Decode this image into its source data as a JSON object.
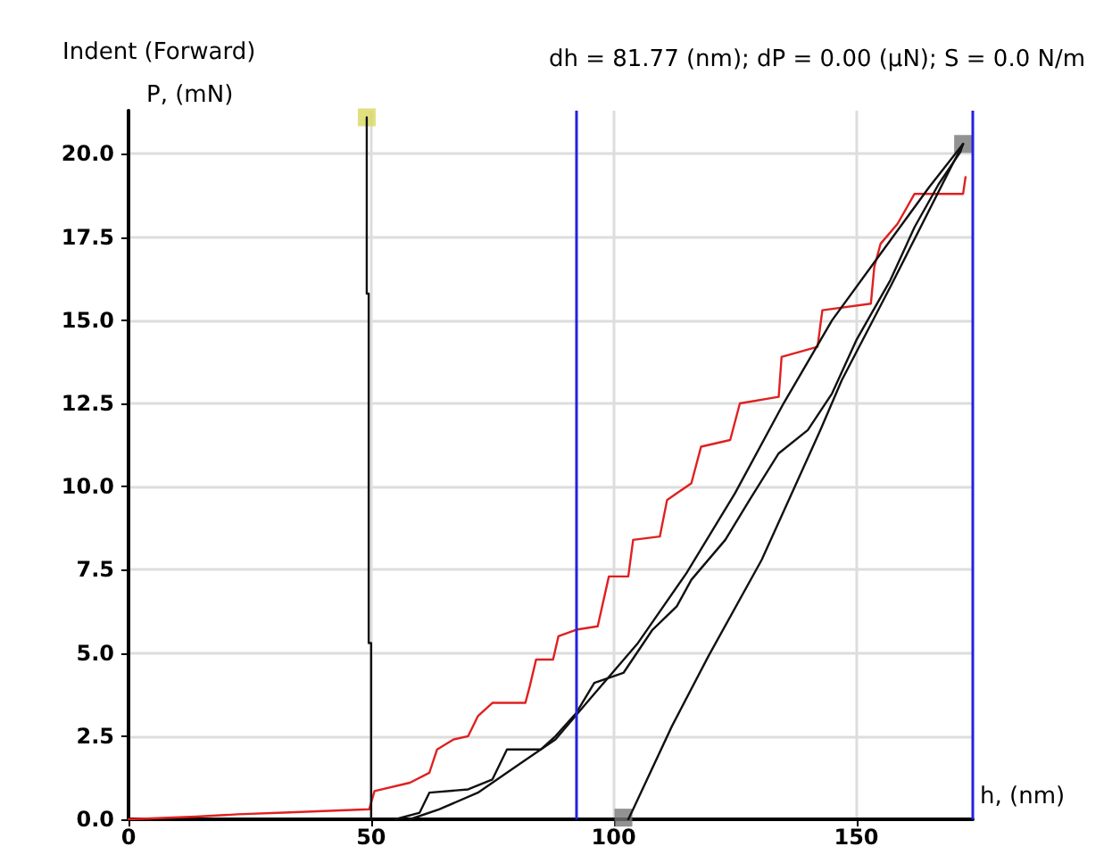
{
  "chart_data": {
    "type": "line",
    "title": "Indent (Forward)",
    "subtitle": "dh = 81.77 (nm); dP = 0.00 (µN); S = 0.0 N/m",
    "xlabel": "h, (nm)",
    "ylabel": "P, (mN)",
    "xlim": [
      0,
      174
    ],
    "ylim": [
      0,
      21.3
    ],
    "xticks": [
      0,
      50,
      100,
      150
    ],
    "yticks": [
      {
        "value": 0,
        "label": "0.0"
      },
      {
        "value": 2.5,
        "label": "2.5"
      },
      {
        "value": 5,
        "label": "5.0"
      },
      {
        "value": 7.5,
        "label": "7.5"
      },
      {
        "value": 10,
        "label": "10.0"
      },
      {
        "value": 12.5,
        "label": "12.5"
      },
      {
        "value": 15,
        "label": "15.0"
      },
      {
        "value": 17.5,
        "label": "17.5"
      },
      {
        "value": 20,
        "label": "20.0"
      }
    ],
    "grid": true,
    "line_style": "solid",
    "ref_lines": [
      {
        "axis": "x",
        "value": 92.3,
        "color": "#2222dd"
      },
      {
        "axis": "x",
        "value": 174,
        "color": "#2222dd"
      }
    ],
    "series": [
      {
        "color": "#e02020",
        "marker": "none",
        "x": [
          0,
          14,
          22.5,
          32,
          49.6,
          50.7,
          58,
          62,
          63.6,
          67,
          70,
          72,
          75,
          81.8,
          82.7,
          84,
          87.5,
          88.6,
          92.3,
          96.7,
          99,
          103,
          104,
          109.5,
          111,
          116,
          118,
          124,
          126,
          134,
          134.6,
          142,
          143,
          153,
          153.7,
          155,
          158.5,
          162,
          172,
          172.5
        ],
        "values": [
          0,
          0.08,
          0.15,
          0.2,
          0.3,
          0.85,
          1.1,
          1.4,
          2.1,
          2.4,
          2.5,
          3.1,
          3.5,
          3.5,
          4.0,
          4.8,
          4.8,
          5.5,
          5.7,
          5.8,
          7.3,
          7.3,
          8.4,
          8.5,
          9.6,
          10.1,
          11.2,
          11.4,
          12.5,
          12.7,
          13.9,
          14.2,
          15.3,
          15.5,
          16.6,
          17.3,
          17.9,
          18.8,
          18.8,
          19.3
        ]
      },
      {
        "color": "#111111",
        "marker": "none",
        "x": [
          50,
          50,
          49.5,
          49.5,
          49.1,
          49.1
        ],
        "values": [
          0,
          5.3,
          5.3,
          15.8,
          15.8,
          21.1
        ]
      },
      {
        "color": "#111111",
        "marker": "none",
        "x": [
          55,
          60,
          62,
          70,
          75,
          78,
          85,
          88,
          92.3,
          96,
          102,
          108,
          113,
          116,
          123,
          128,
          134,
          140,
          145,
          150,
          157,
          162,
          167,
          171.4,
          172
        ],
        "values": [
          0,
          0.2,
          0.8,
          0.9,
          1.2,
          2.1,
          2.1,
          2.5,
          3.2,
          4.1,
          4.4,
          5.7,
          6.4,
          7.2,
          8.4,
          9.6,
          11.0,
          11.7,
          12.8,
          14.4,
          16.2,
          17.8,
          19.1,
          20.05,
          20.3
        ]
      },
      {
        "color": "#111111",
        "marker": "none",
        "x": [
          58,
          64,
          72,
          80,
          88,
          95,
          105,
          115,
          125,
          135,
          145,
          155,
          165,
          172
        ],
        "values": [
          0,
          0.3,
          0.8,
          1.6,
          2.4,
          3.6,
          5.3,
          7.4,
          9.8,
          12.5,
          15.0,
          17.0,
          19.0,
          20.3
        ]
      },
      {
        "color": "#111111",
        "marker": "none",
        "x": [
          103,
          104,
          112,
          119.5,
          130.5,
          142.6,
          147,
          157,
          169.5,
          172
        ],
        "values": [
          0,
          0.3,
          2.8,
          4.9,
          7.8,
          11.7,
          13.2,
          16.0,
          19.6,
          20.3
        ]
      },
      {
        "type": "scatter",
        "color": "#d8d860",
        "marker": "square",
        "x": [
          49.1
        ],
        "values": [
          21.1
        ]
      },
      {
        "type": "scatter",
        "color": "#777777",
        "marker": "square",
        "x": [
          172,
          102
        ],
        "values": [
          20.3,
          0.05
        ]
      }
    ]
  }
}
